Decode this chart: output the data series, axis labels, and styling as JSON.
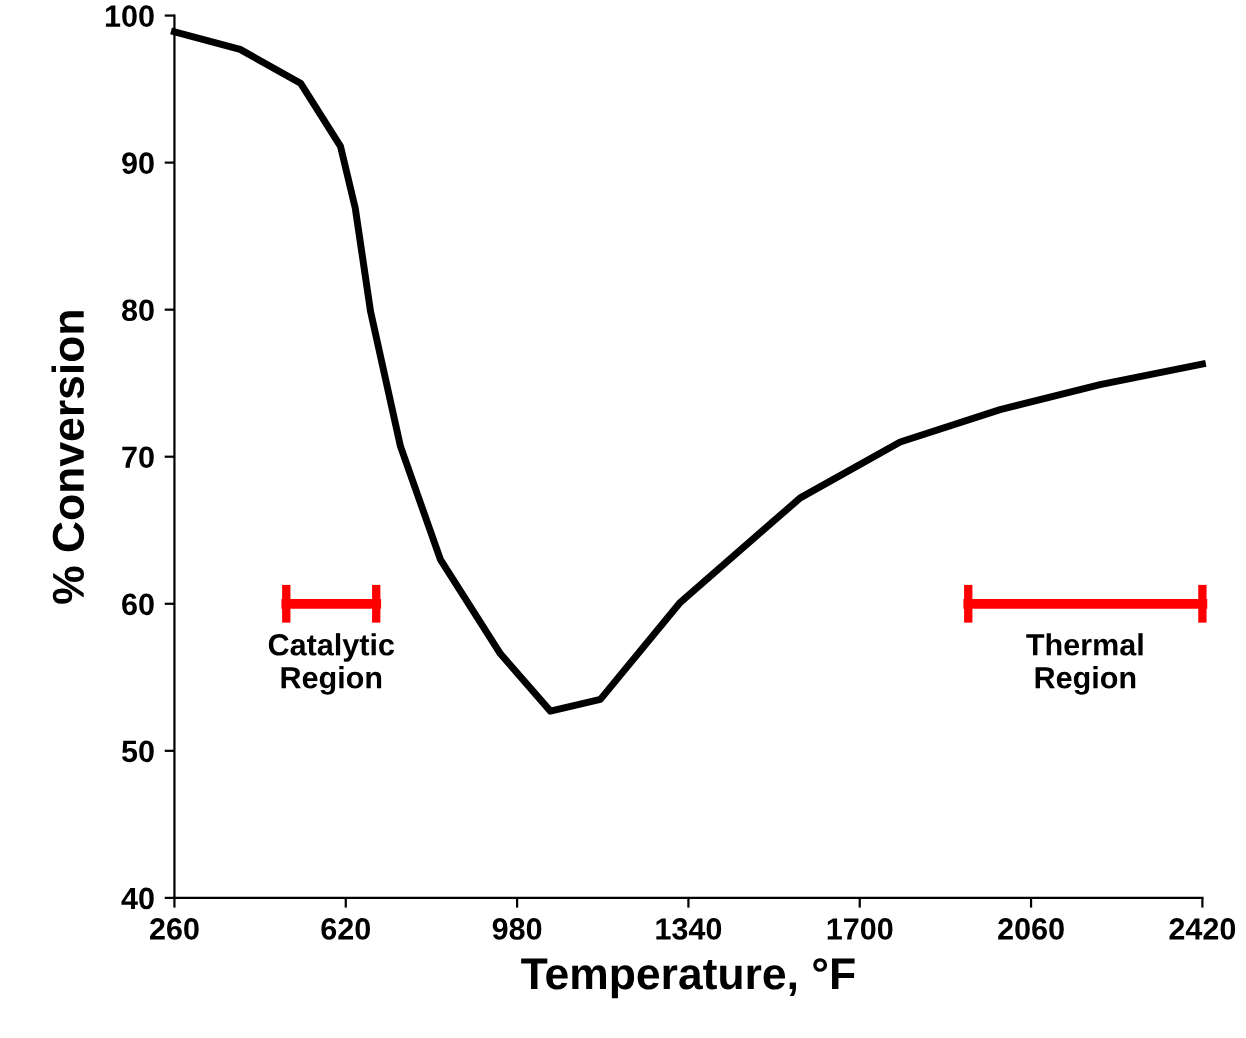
{
  "chart_data": {
    "type": "line",
    "xlabel": "Temperature, °F",
    "ylabel": "% Conversion",
    "xlim": [
      260,
      2420
    ],
    "xticks": [
      260,
      620,
      980,
      1340,
      1700,
      2060,
      2420
    ],
    "ylim": [
      40,
      100
    ],
    "yticks": [
      40,
      50,
      60,
      70,
      80,
      90,
      100
    ],
    "grid": false,
    "series": [
      {
        "color": "#000000",
        "x": [
          260,
          398,
          525,
          609,
          640,
          672,
          735,
          819,
          945,
          1050,
          1155,
          1323,
          1575,
          1785,
          1995,
          2205,
          2420
        ],
        "values": [
          98.9,
          97.7,
          95.4,
          91.1,
          86.9,
          79.9,
          70.7,
          63,
          56.6,
          52.7,
          53.5,
          60.1,
          67.2,
          71,
          73.2,
          74.9,
          76.3
        ]
      },
      {
        "type": "line",
        "name": "Catalytic\nRegion",
        "color": "#ff0000",
        "marker": "none",
        "x": [
          495,
          684
        ],
        "values": [
          60,
          60
        ]
      },
      {
        "type": "line",
        "name": "Thermal\nRegion",
        "color": "#ff0000",
        "marker": "none",
        "x": [
          1928,
          2420
        ],
        "values": [
          60,
          60
        ]
      }
    ]
  }
}
